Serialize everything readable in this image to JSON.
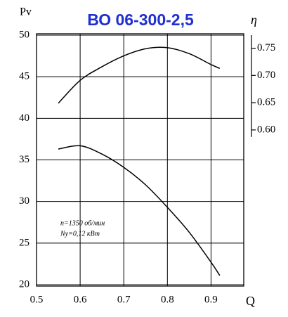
{
  "chart_data": {
    "type": "line",
    "title": "ВО 06-300-2,5",
    "y_label": "Pv",
    "y2_label": "η",
    "x_label": "Q",
    "annotations": [
      "n=1350 об/мин",
      "Nу=0,12 кВт"
    ],
    "x": [
      0.55,
      0.6,
      0.65,
      0.7,
      0.75,
      0.8,
      0.85,
      0.9,
      0.92
    ],
    "series": [
      {
        "color": "#000000",
        "values": [
          36.3,
          36.7,
          35.7,
          34.1,
          32.0,
          29.3,
          26.3,
          22.7,
          21.1
        ]
      },
      {
        "color": "#000000",
        "axis": "y2",
        "values": [
          0.649,
          0.691,
          0.716,
          0.736,
          0.749,
          0.751,
          0.74,
          0.72,
          0.713
        ]
      }
    ],
    "xlim": [
      0.5,
      0.975
    ],
    "xticks": [
      0.5,
      0.6,
      0.7,
      0.8,
      0.9
    ],
    "ylim": [
      20,
      50
    ],
    "yticks": [
      20,
      25,
      30,
      35,
      40,
      45,
      50
    ],
    "y2lim": [
      0.316,
      0.774
    ],
    "y2ticks": [
      {
        "value": 0.6,
        "label": "0.60"
      },
      0.65,
      {
        "value": 0.7,
        "label": "0.70"
      },
      0.75
    ],
    "grid": true,
    "title_color": "#1f2fd0"
  }
}
